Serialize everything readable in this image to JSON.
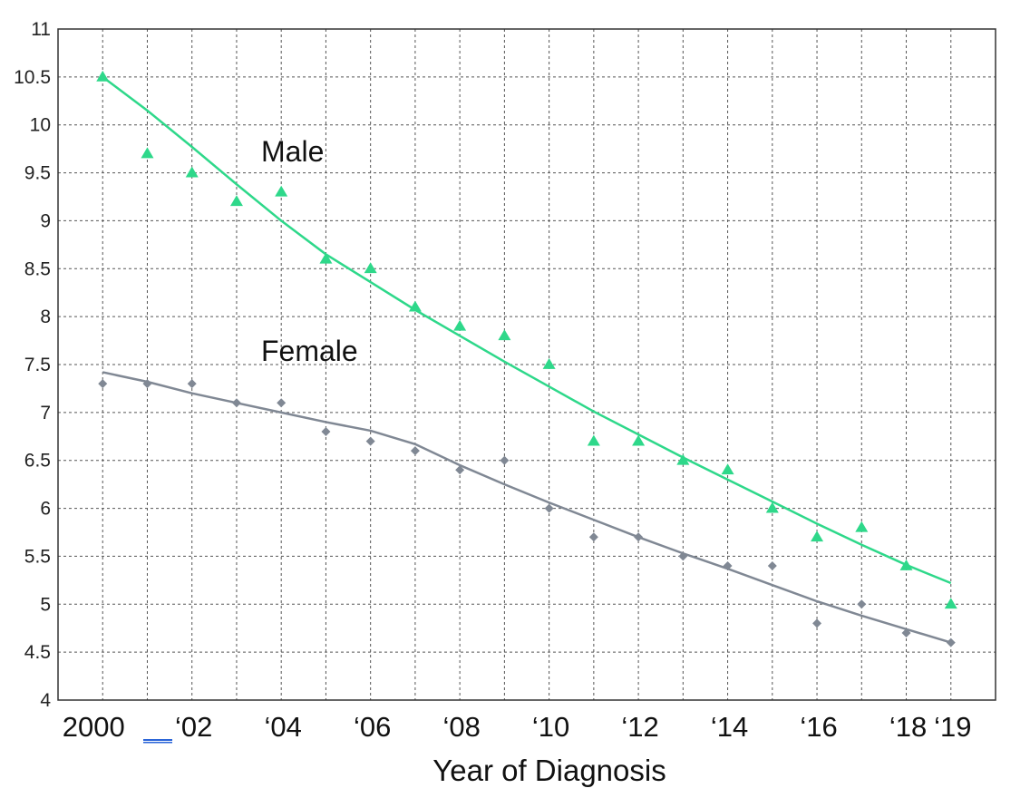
{
  "chart_data": {
    "type": "scatter",
    "title": "",
    "xlabel": "Year of Diagnosis",
    "ylabel": "",
    "x": [
      2000,
      2001,
      2002,
      2003,
      2004,
      2005,
      2006,
      2007,
      2008,
      2009,
      2010,
      2011,
      2012,
      2013,
      2014,
      2015,
      2016,
      2017,
      2018,
      2019
    ],
    "x_tick_values": [
      2000,
      2002,
      2004,
      2006,
      2008,
      2010,
      2012,
      2014,
      2016,
      2018,
      2019
    ],
    "x_tick_labels": [
      "2000",
      "‘02",
      "‘04",
      "‘06",
      "‘08",
      "‘10",
      "‘12",
      "‘14",
      "‘16",
      "‘18",
      "‘19"
    ],
    "ylim": [
      4,
      11
    ],
    "y_ticks": [
      "4",
      "4.5",
      "5",
      "5.5",
      "6",
      "6.5",
      "7",
      "7.5",
      "8",
      "8.5",
      "9",
      "9.5",
      "10",
      "10.5",
      "11"
    ],
    "grid": true,
    "series": [
      {
        "name": "Male",
        "marker": "triangle",
        "color": "#2ed88a",
        "values": [
          10.5,
          9.7,
          9.5,
          9.2,
          9.3,
          8.6,
          8.5,
          8.1,
          7.9,
          7.8,
          7.5,
          6.7,
          6.7,
          6.5,
          6.4,
          6.0,
          5.7,
          5.8,
          5.4,
          5.0
        ],
        "trend": [
          10.5,
          10.15,
          9.77,
          9.38,
          9.0,
          8.65,
          8.36,
          8.07,
          7.8,
          7.53,
          7.27,
          7.01,
          6.77,
          6.53,
          6.3,
          6.07,
          5.84,
          5.62,
          5.41,
          5.22
        ]
      },
      {
        "name": "Female",
        "marker": "diamond",
        "color": "#808894",
        "values": [
          7.3,
          7.3,
          7.3,
          7.1,
          7.1,
          6.8,
          6.7,
          6.6,
          6.4,
          6.5,
          6.0,
          5.7,
          5.7,
          5.5,
          5.4,
          5.4,
          4.8,
          5.0,
          4.7,
          4.6
        ],
        "trend": [
          7.42,
          7.32,
          7.2,
          7.1,
          7.0,
          6.9,
          6.81,
          6.67,
          6.45,
          6.25,
          6.06,
          5.88,
          5.7,
          5.53,
          5.37,
          5.2,
          5.03,
          4.88,
          4.74,
          4.6
        ]
      }
    ]
  }
}
